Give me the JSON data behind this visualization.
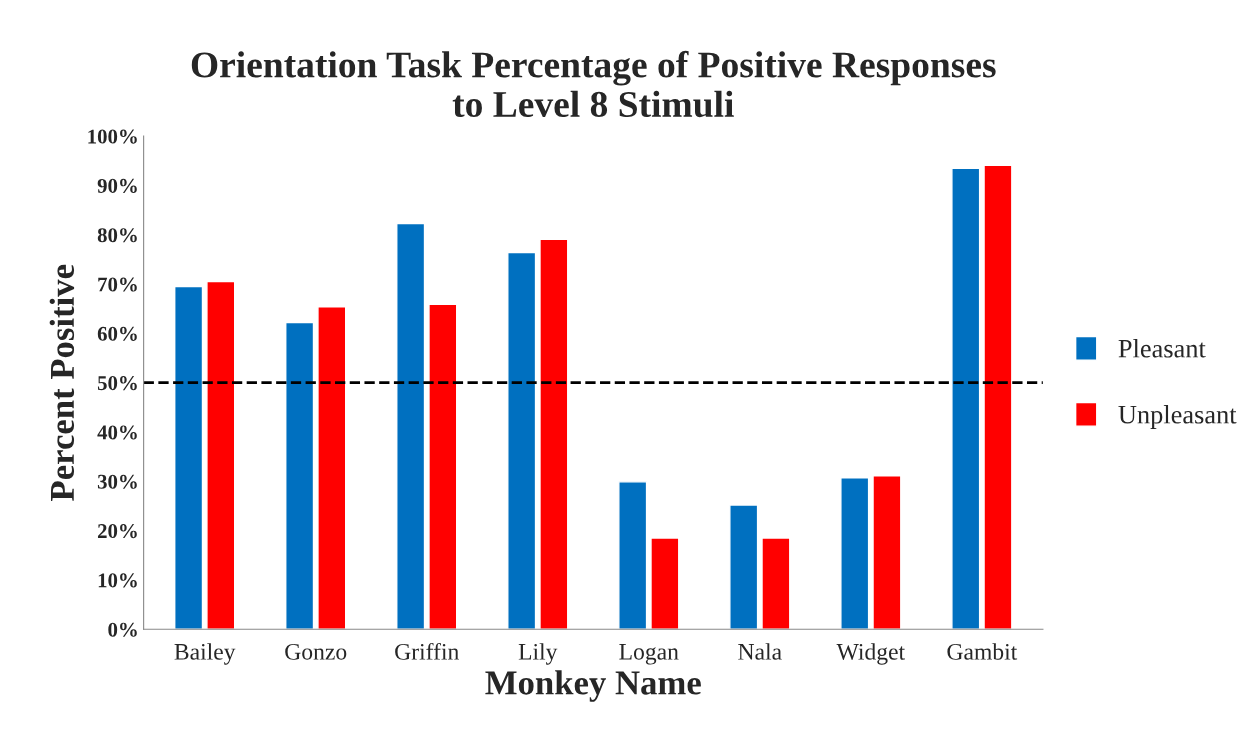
{
  "chart_data": {
    "type": "bar",
    "title": "Orientation Task Percentage of Positive Responses\nto Level 8 Stimuli",
    "xlabel": "Monkey Name",
    "ylabel": "Percent Positive",
    "categories": [
      "Bailey",
      "Gonzo",
      "Griffin",
      "Lily",
      "Logan",
      "Nala",
      "Widget",
      "Gambit"
    ],
    "series": [
      {
        "name": "Pleasant",
        "color": "#0070c0",
        "values": [
          69.5,
          62.2,
          82.3,
          76.4,
          29.9,
          25.2,
          30.7,
          93.5
        ]
      },
      {
        "name": "Unpleasant",
        "color": "#ff0000",
        "values": [
          70.5,
          65.4,
          65.9,
          79.1,
          18.5,
          18.5,
          31.1,
          94.1
        ]
      }
    ],
    "ylim": [
      0,
      100
    ],
    "yticks": [
      {
        "value": 0,
        "label": "0%"
      },
      {
        "value": 10,
        "label": "10%"
      },
      {
        "value": 20,
        "label": "20%"
      },
      {
        "value": 30,
        "label": "30%"
      },
      {
        "value": 40,
        "label": "40%"
      },
      {
        "value": 50,
        "label": "50%"
      },
      {
        "value": 60,
        "label": "60%"
      },
      {
        "value": 70,
        "label": "70%"
      },
      {
        "value": 80,
        "label": "80%"
      },
      {
        "value": 90,
        "label": "90%"
      },
      {
        "value": 100,
        "label": "100%"
      }
    ],
    "ref_lines": [
      {
        "axis": "y",
        "value": 50,
        "color": "#000000",
        "line_style": "dashed"
      }
    ],
    "legend": "right",
    "grid": false
  }
}
